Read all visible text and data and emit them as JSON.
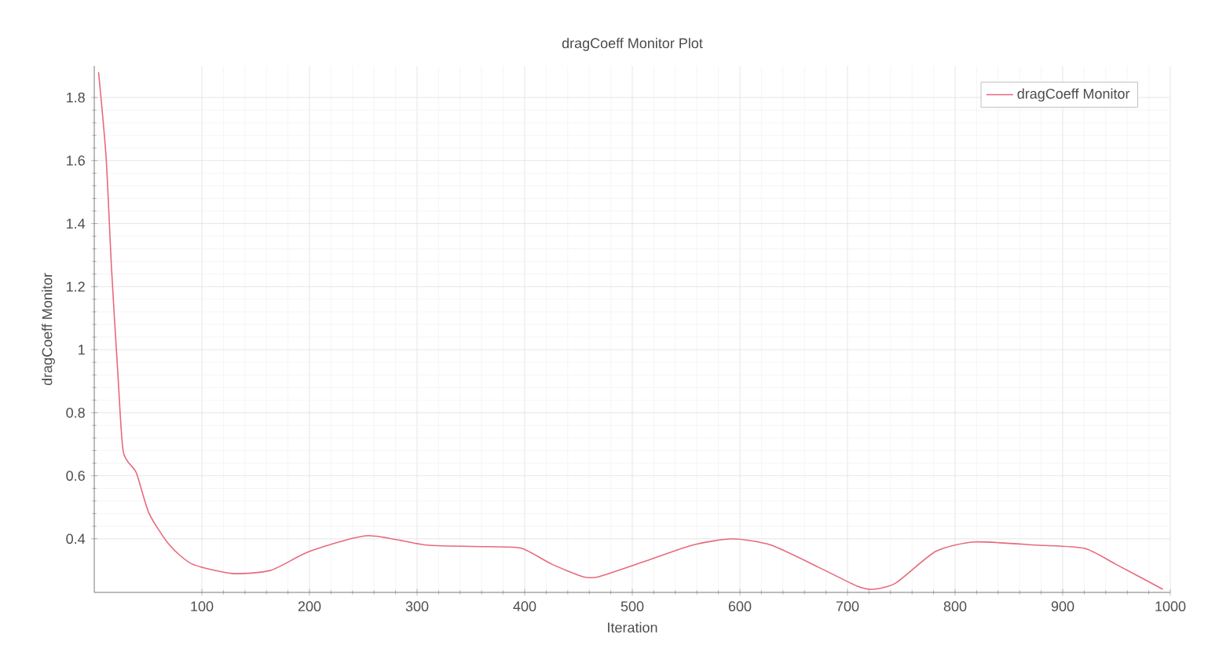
{
  "chart_data": {
    "type": "line",
    "title": "dragCoeff Monitor Plot",
    "xlabel": "Iteration",
    "ylabel": "dragCoeff Monitor",
    "xlim": [
      0,
      1000
    ],
    "ylim": [
      0.23,
      1.9
    ],
    "xticks": [
      100,
      200,
      300,
      400,
      500,
      600,
      700,
      800,
      900,
      1000
    ],
    "yticks": [
      0.4,
      0.6,
      0.8,
      1,
      1.2,
      1.4,
      1.6,
      1.8
    ],
    "grid": true,
    "legend": "top right",
    "series": [
      {
        "name": "dragCoeff Monitor",
        "color": "#e8697a",
        "x": [
          4,
          11,
          16,
          22,
          27,
          39,
          51,
          70,
          91,
          128,
          164,
          200,
          254,
          309,
          368,
          397,
          425,
          454,
          469,
          513,
          556,
          593,
          629,
          673,
          709,
          724,
          745,
          782,
          818,
          876,
          920,
          949,
          993
        ],
        "values": [
          1.88,
          1.61,
          1.26,
          0.92,
          0.675,
          0.61,
          0.48,
          0.38,
          0.32,
          0.29,
          0.3,
          0.36,
          0.41,
          0.38,
          0.375,
          0.37,
          0.32,
          0.28,
          0.28,
          0.33,
          0.38,
          0.4,
          0.38,
          0.31,
          0.25,
          0.24,
          0.26,
          0.36,
          0.39,
          0.38,
          0.37,
          0.32,
          0.24
        ]
      }
    ]
  }
}
